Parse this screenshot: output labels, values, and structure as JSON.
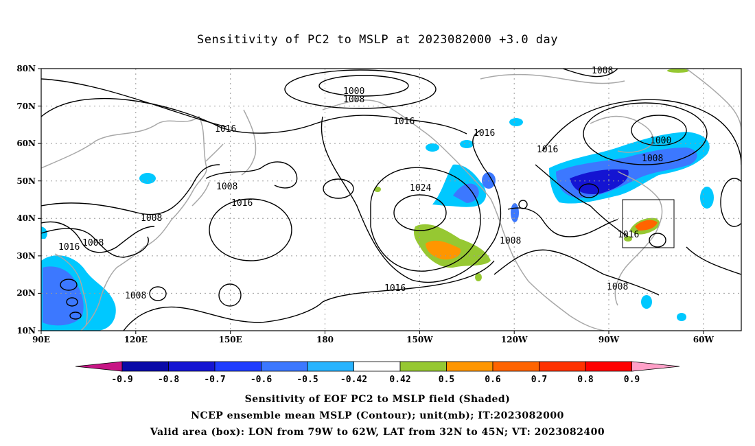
{
  "title": "Sensitivity of PC2 to MSLP at 2023082000 +3.0 day",
  "map": {
    "lat_labels": [
      "80N",
      "70N",
      "60N",
      "50N",
      "40N",
      "30N",
      "20N",
      "10N"
    ],
    "lon_labels": [
      "90E",
      "120E",
      "150E",
      "180",
      "150W",
      "120W",
      "90W",
      "60W"
    ],
    "lat_range": [
      10,
      80
    ],
    "lon_range": [
      90,
      312
    ],
    "box": {
      "lon_from": "79W",
      "lon_to": "62W",
      "lat_from": "32N",
      "lat_to": "45N"
    },
    "contour_labels": [
      {
        "text": "1000",
        "id": "c1000a"
      },
      {
        "text": "1008",
        "id": "c1008a"
      },
      {
        "text": "1008",
        "id": "c1008b"
      },
      {
        "text": "1016",
        "id": "c1016a"
      },
      {
        "text": "1016",
        "id": "c1016b"
      },
      {
        "text": "1016",
        "id": "c1016c"
      },
      {
        "text": "1008",
        "id": "c1008c"
      },
      {
        "text": "1016",
        "id": "c1016d"
      },
      {
        "text": "1008",
        "id": "c1008d"
      },
      {
        "text": "1016",
        "id": "c1016e"
      },
      {
        "text": "1024",
        "id": "c1024"
      },
      {
        "text": "1008",
        "id": "c1008e"
      },
      {
        "text": "1016",
        "id": "c1016f"
      },
      {
        "text": "1016",
        "id": "c1016g"
      },
      {
        "text": "1008",
        "id": "c1008f"
      },
      {
        "text": "1008",
        "id": "c1008g"
      },
      {
        "text": "1000",
        "id": "c1000b"
      },
      {
        "text": "1008",
        "id": "c1008h"
      },
      {
        "text": "1016",
        "id": "c1016h"
      },
      {
        "text": "1008",
        "id": "c1008i"
      },
      {
        "text": "1016",
        "id": "c1016i"
      },
      {
        "text": "1008",
        "id": "c1008j"
      }
    ]
  },
  "colorbar": {
    "ticks": [
      "-0.9",
      "-0.8",
      "-0.7",
      "-0.6",
      "-0.5",
      "-0.42",
      "0.42",
      "0.5",
      "0.6",
      "0.7",
      "0.8",
      "0.9"
    ],
    "colors": [
      "#c71585",
      "#0a0aa8",
      "#1414d2",
      "#1e3cff",
      "#3c78ff",
      "#28b4ff",
      "#00c8ff",
      "#ffffff",
      "#96c832",
      "#ff9600",
      "#ff6400",
      "#ff3200",
      "#ff0000",
      "#ffa0c8"
    ]
  },
  "caption": {
    "line1": "Sensitivity of EOF PC2 to MSLP field (Shaded)",
    "line2": "NCEP ensemble mean MSLP (Contour); unit(mb); IT:2023082000",
    "line3": "Valid area (box): LON from 79W to 62W, LAT from 32N to 45N; VT: 2023082400"
  }
}
